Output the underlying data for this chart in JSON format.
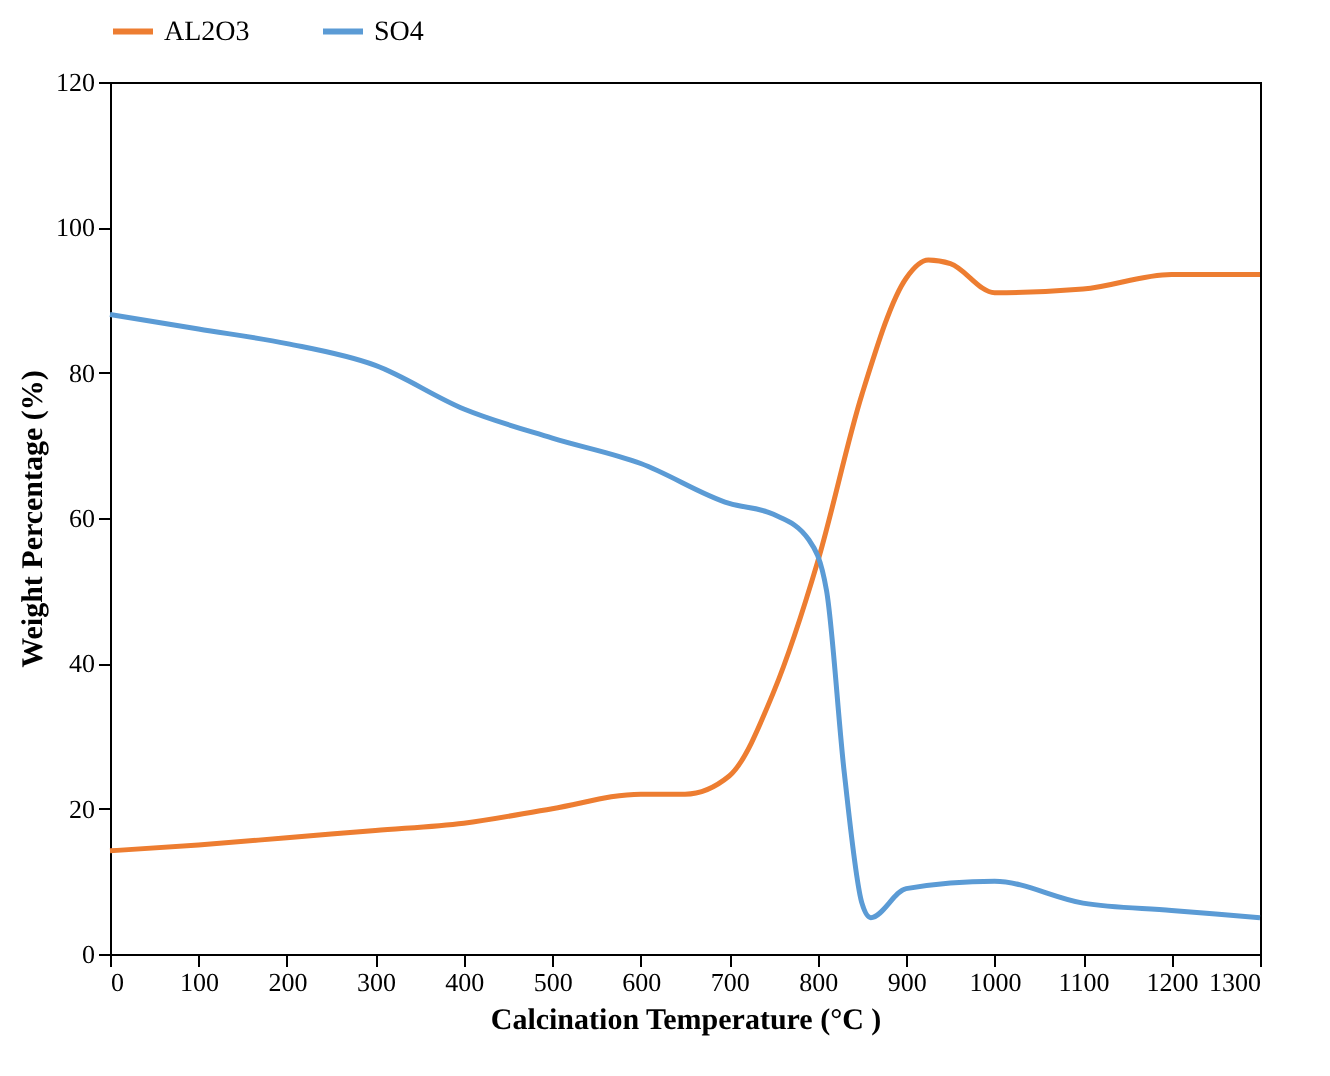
{
  "chart_data": {
    "type": "line",
    "xlabel": "Calcination Temperature (°C )",
    "ylabel": "Weight Percentage (%)",
    "xlim": [
      0,
      1300
    ],
    "xticks": [
      0,
      100,
      200,
      300,
      400,
      500,
      600,
      700,
      800,
      900,
      1000,
      1100,
      1200,
      1300
    ],
    "ylim": [
      0,
      120
    ],
    "yticks": [
      0,
      20,
      40,
      60,
      80,
      100,
      120
    ],
    "grid": false,
    "legend": "top",
    "marker": "none",
    "line_style": "solid",
    "series": [
      {
        "name": "AL2O3",
        "color": "#ed7d31",
        "x": [
          0,
          100,
          200,
          300,
          400,
          500,
          600,
          650,
          700,
          750,
          800,
          850,
          900,
          925,
          950,
          1000,
          1100,
          1200,
          1300
        ],
        "values": [
          14.2,
          15,
          16,
          17,
          18,
          20,
          22,
          22,
          24.5,
          36,
          54,
          77,
          93,
          95.5,
          95,
          91,
          91.5,
          93.5,
          93.5
        ]
      },
      {
        "name": "SO4",
        "color": "#5b9bd5",
        "x": [
          0,
          100,
          200,
          300,
          400,
          500,
          600,
          700,
          750,
          790,
          810,
          830,
          850,
          860,
          900,
          1000,
          1100,
          1200,
          1300
        ],
        "values": [
          88,
          86,
          84,
          81,
          75,
          71,
          67.5,
          62,
          60.5,
          57,
          50,
          25,
          7,
          5,
          9,
          10,
          7,
          6,
          5
        ]
      }
    ]
  }
}
